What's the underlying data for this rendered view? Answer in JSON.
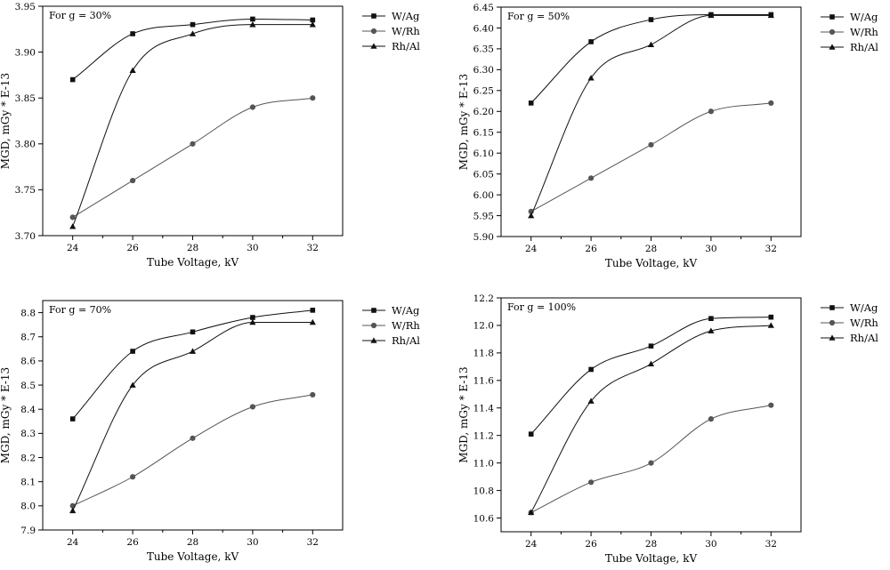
{
  "colors": {
    "wag": "#111111",
    "wrh": "#555555",
    "rhal": "#111111",
    "axis": "#000000"
  },
  "chart_data": [
    {
      "type": "line",
      "annotation": "For g = 30%",
      "xlabel": "Tube Voltage, kV",
      "ylabel": "MGD, mGy * E-13",
      "x": [
        24,
        26,
        28,
        30,
        32
      ],
      "x_ticks": [
        "24",
        "26",
        "28",
        "30",
        "32"
      ],
      "xlim": [
        23,
        33
      ],
      "ylim": [
        3.7,
        3.95
      ],
      "y_ticks": [
        "3.70",
        "3.75",
        "3.80",
        "3.85",
        "3.90",
        "3.95"
      ],
      "grid": false,
      "legend": "top-right",
      "series": [
        {
          "name": "W/Ag",
          "marker": "square",
          "values": [
            3.87,
            3.92,
            3.93,
            3.936,
            3.935
          ]
        },
        {
          "name": "W/Rh",
          "marker": "circle",
          "values": [
            3.72,
            3.76,
            3.8,
            3.84,
            3.85
          ]
        },
        {
          "name": "Rh/Al",
          "marker": "triangle",
          "values": [
            3.71,
            3.88,
            3.92,
            3.93,
            3.93
          ]
        }
      ]
    },
    {
      "type": "line",
      "annotation": "For g = 50%",
      "xlabel": "Tube Voltage, kV",
      "ylabel": "MGD, mGy * E-13",
      "x": [
        24,
        26,
        28,
        30,
        32
      ],
      "x_ticks": [
        "24",
        "26",
        "28",
        "30",
        "32"
      ],
      "xlim": [
        23,
        33
      ],
      "ylim": [
        5.9,
        6.45
      ],
      "y_ticks": [
        "5.90",
        "5.95",
        "6.00",
        "6.05",
        "6.10",
        "6.15",
        "6.20",
        "6.25",
        "6.30",
        "6.35",
        "6.40",
        "6.45"
      ],
      "grid": false,
      "legend": "top-right",
      "series": [
        {
          "name": "W/Ag",
          "marker": "square",
          "values": [
            6.22,
            6.367,
            6.42,
            6.432,
            6.432
          ]
        },
        {
          "name": "W/Rh",
          "marker": "circle",
          "values": [
            5.96,
            6.04,
            6.12,
            6.2,
            6.22
          ]
        },
        {
          "name": "Rh/Al",
          "marker": "triangle",
          "values": [
            5.95,
            6.28,
            6.36,
            6.43,
            6.43
          ]
        }
      ]
    },
    {
      "type": "line",
      "annotation": "For g = 70%",
      "xlabel": "Tube Voltage, kV",
      "ylabel": "MGD, mGy * E-13",
      "x": [
        24,
        26,
        28,
        30,
        32
      ],
      "x_ticks": [
        "24",
        "26",
        "28",
        "30",
        "32"
      ],
      "xlim": [
        23,
        33
      ],
      "ylim": [
        7.9,
        8.85
      ],
      "y_ticks": [
        "7.9",
        "8.0",
        "8.1",
        "8.2",
        "8.3",
        "8.4",
        "8.5",
        "8.6",
        "8.7",
        "8.8"
      ],
      "grid": false,
      "legend": "top-right",
      "series": [
        {
          "name": "W/Ag",
          "marker": "square",
          "values": [
            8.36,
            8.64,
            8.72,
            8.78,
            8.81
          ]
        },
        {
          "name": "W/Rh",
          "marker": "circle",
          "values": [
            8.0,
            8.12,
            8.28,
            8.41,
            8.46
          ]
        },
        {
          "name": "Rh/Al",
          "marker": "triangle",
          "values": [
            7.98,
            8.5,
            8.64,
            8.76,
            8.76
          ]
        }
      ]
    },
    {
      "type": "line",
      "annotation": "For g = 100%",
      "xlabel": "Tube Voltage, kV",
      "ylabel": "MGD, mGy * E-13",
      "x": [
        24,
        26,
        28,
        30,
        32
      ],
      "x_ticks": [
        "24",
        "26",
        "28",
        "30",
        "32"
      ],
      "xlim": [
        23,
        33
      ],
      "ylim": [
        10.5,
        12.2
      ],
      "y_ticks": [
        "10.6",
        "10.8",
        "11.0",
        "11.2",
        "11.4",
        "11.6",
        "11.8",
        "12.0",
        "12.2"
      ],
      "grid": false,
      "legend": "top-right",
      "series": [
        {
          "name": "W/Ag",
          "marker": "square",
          "values": [
            11.21,
            11.68,
            11.85,
            12.05,
            12.06
          ]
        },
        {
          "name": "W/Rh",
          "marker": "circle",
          "values": [
            10.64,
            10.86,
            11.0,
            11.32,
            11.42
          ]
        },
        {
          "name": "Rh/Al",
          "marker": "triangle",
          "values": [
            10.64,
            11.45,
            11.72,
            11.96,
            12.0
          ]
        }
      ]
    }
  ]
}
